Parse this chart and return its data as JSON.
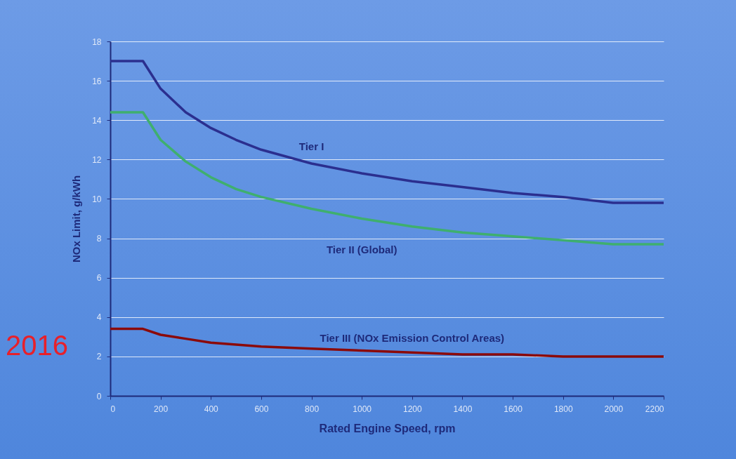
{
  "chart_data": {
    "type": "line",
    "xlabel": "Rated Engine Speed, rpm",
    "ylabel": "NOx Limit, g/kWh",
    "annotations": [
      "2016"
    ],
    "series": [
      {
        "name": "Tier I",
        "color": "#2b2f8f",
        "x": [
          0,
          130,
          200,
          300,
          400,
          500,
          600,
          800,
          1000,
          1200,
          1400,
          1600,
          1800,
          1999,
          2000,
          2200
        ],
        "values": [
          17,
          17,
          15.6,
          14.4,
          13.6,
          13.0,
          12.5,
          11.8,
          11.3,
          10.9,
          10.6,
          10.3,
          10.1,
          9.8,
          9.8,
          9.8
        ]
      },
      {
        "name": "Tier II (Global)",
        "color": "#3faf6e",
        "x": [
          0,
          130,
          200,
          300,
          400,
          500,
          600,
          800,
          1000,
          1200,
          1400,
          1600,
          1800,
          1999,
          2000,
          2200
        ],
        "values": [
          14.4,
          14.4,
          13.0,
          11.9,
          11.1,
          10.5,
          10.1,
          9.5,
          9.0,
          8.6,
          8.3,
          8.1,
          7.9,
          7.7,
          7.7,
          7.7
        ]
      },
      {
        "name": "Tier III (NOx Emission Control Areas)",
        "color": "#8b0a0a",
        "x": [
          0,
          130,
          200,
          300,
          400,
          500,
          600,
          800,
          1000,
          1200,
          1400,
          1600,
          1800,
          1999,
          2000,
          2200
        ],
        "values": [
          3.4,
          3.4,
          3.1,
          2.9,
          2.7,
          2.6,
          2.5,
          2.4,
          2.3,
          2.2,
          2.1,
          2.1,
          2.0,
          2.0,
          2.0,
          2.0
        ]
      }
    ],
    "xlim": [
      0,
      2200
    ],
    "xticks": [
      0,
      200,
      400,
      600,
      800,
      1000,
      1200,
      1400,
      1600,
      1800,
      2000,
      2200
    ],
    "ylim": [
      0,
      18
    ],
    "yticks": [
      0,
      2,
      4,
      6,
      8,
      10,
      12,
      14,
      16,
      18
    ],
    "grid": "y",
    "legend": false
  }
}
